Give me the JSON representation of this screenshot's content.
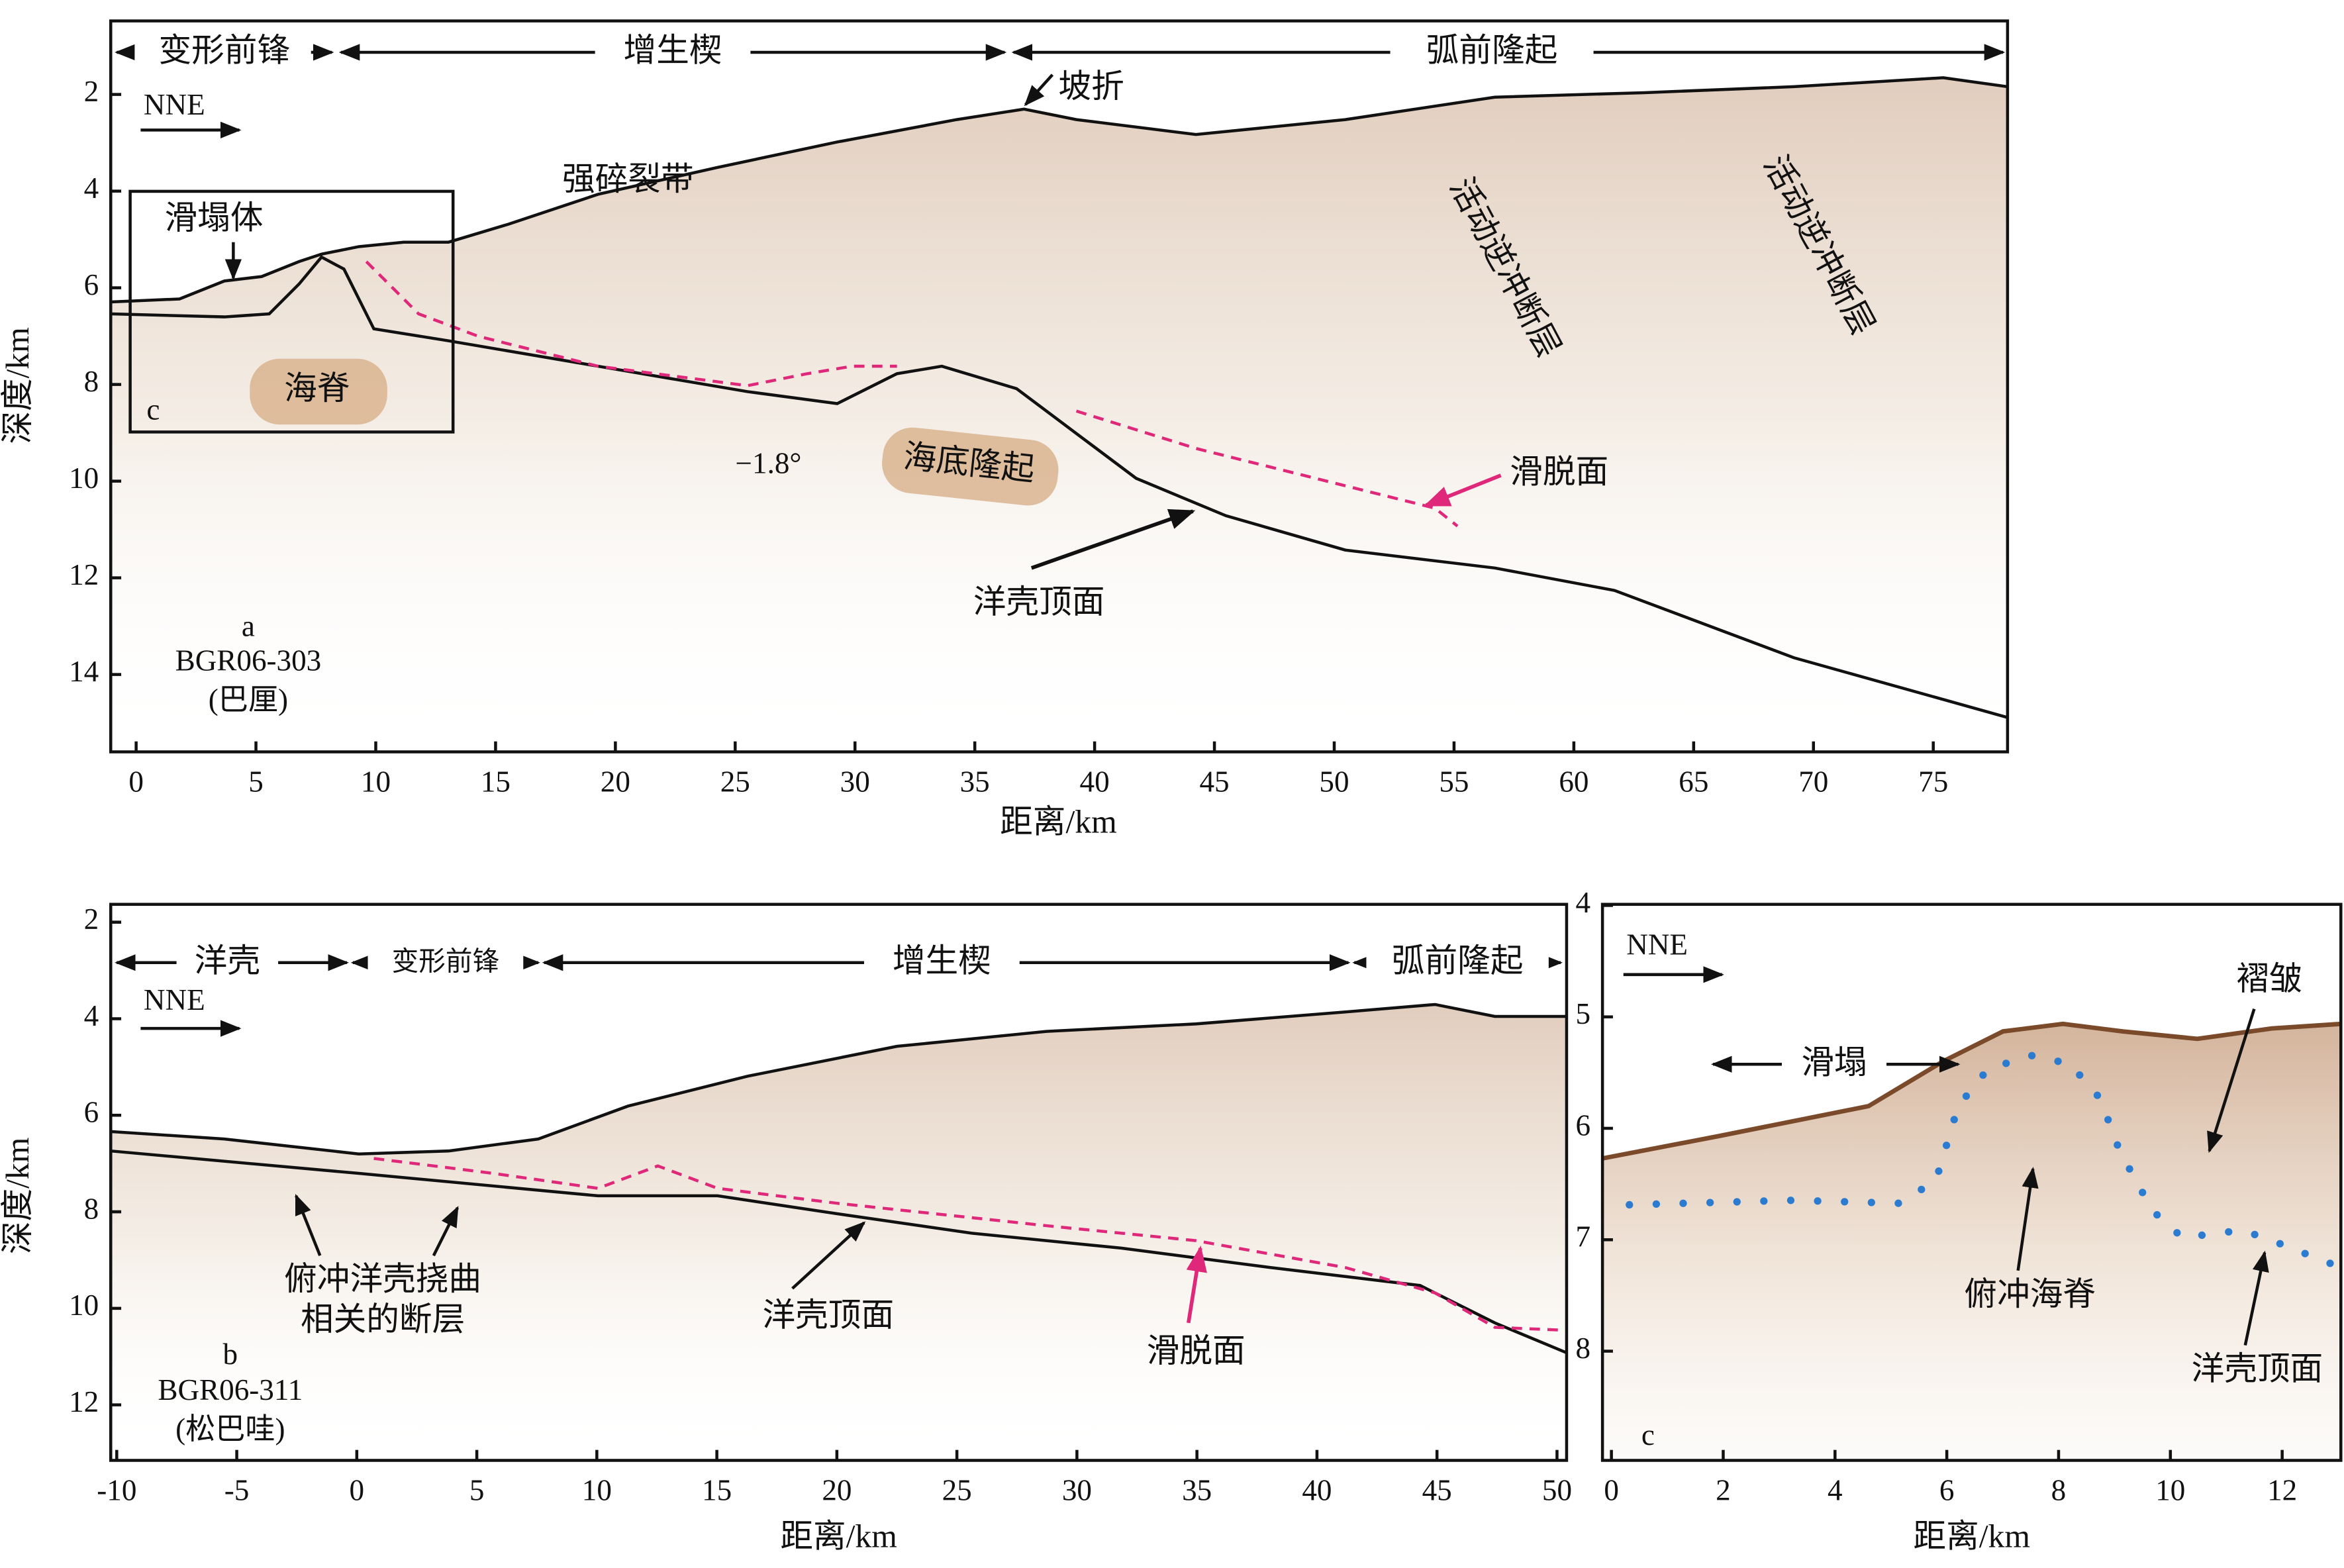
{
  "panels": [
    {
      "id": "a",
      "profile": "BGR06-303",
      "location": "(巴厘)",
      "xlabel": "距离/km",
      "ylabel": "深度/km",
      "xlim": [
        -1.06,
        78.1
      ],
      "ylim": [
        0.48,
        15.6
      ],
      "xticks": [
        0,
        5,
        10,
        15,
        20,
        25,
        30,
        35,
        40,
        45,
        50,
        55,
        60,
        65,
        70,
        75
      ],
      "yticks": [
        2,
        4,
        6,
        8,
        10,
        12,
        14
      ],
      "zones": [
        "变形前锋",
        "增生楔",
        "弧前隆起"
      ],
      "direction": "NNE",
      "inset_label": "c",
      "annotations": {
        "collapse": "滑塌体",
        "ridge": "海脊",
        "fracture": "强碎裂带",
        "break": "坡折",
        "thrust1": "活动逆冲断层",
        "thrust2": "活动逆冲断层",
        "dip": "−1.8°",
        "rise": "海底隆起",
        "decollement": "滑脱面",
        "crust": "洋壳顶面"
      }
    },
    {
      "id": "b",
      "profile": "BGR06-311",
      "location": "(松巴哇)",
      "xlabel": "距离/km",
      "ylabel": "深度/km",
      "xlim": [
        -10.25,
        50.4
      ],
      "ylim": [
        1.63,
        13.15
      ],
      "xticks": [
        -10,
        -5,
        0,
        5,
        10,
        15,
        20,
        25,
        30,
        35,
        40,
        45,
        50
      ],
      "yticks": [
        2,
        4,
        6,
        8,
        10,
        12
      ],
      "zones": [
        "洋壳",
        "变形前锋",
        "增生楔",
        "弧前隆起"
      ],
      "direction": "NNE",
      "annotations": {
        "flexure1": "俯冲洋壳挠曲",
        "flexure2": "相关的断层",
        "crust": "洋壳顶面",
        "decollement": "滑脱面"
      }
    },
    {
      "id": "c",
      "xlabel": "距离/km",
      "xlim": [
        -0.16,
        13.05
      ],
      "ylim": [
        3.99,
        8.98
      ],
      "xticks": [
        0,
        2,
        4,
        6,
        8,
        10,
        12
      ],
      "yticks": [
        4,
        5,
        6,
        7,
        8
      ],
      "direction": "NNE",
      "annotations": {
        "collapse": "滑塌",
        "fold": "褶皱",
        "ridge": "俯冲海脊",
        "crust": "洋壳顶面"
      }
    }
  ]
}
